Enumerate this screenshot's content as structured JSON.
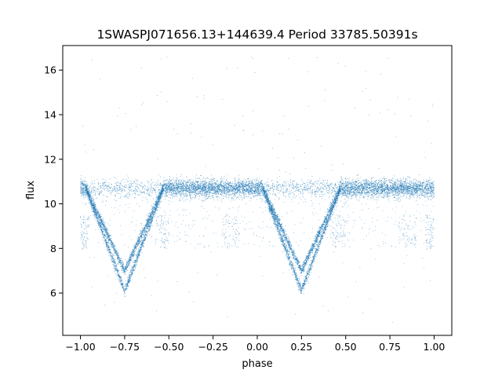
{
  "chart_data": {
    "type": "scatter",
    "title": "1SWASPJ071656.13+144639.4 Period 33785.50391s",
    "xlabel": "phase",
    "ylabel": "flux",
    "xlim": [
      -1.1,
      1.1
    ],
    "ylim": [
      4.1,
      17.1
    ],
    "x_ticks": [
      -1.0,
      -0.75,
      -0.5,
      -0.25,
      0.0,
      0.25,
      0.5,
      0.75,
      1.0
    ],
    "x_tick_labels": [
      "−1.00",
      "−0.75",
      "−0.50",
      "−0.25",
      "0.00",
      "0.25",
      "0.50",
      "0.75",
      "1.00"
    ],
    "y_ticks": [
      6,
      8,
      10,
      12,
      14,
      16
    ],
    "y_tick_labels": [
      "6",
      "8",
      "10",
      "12",
      "14",
      "16"
    ],
    "grid": false,
    "legend": "none",
    "marker_color": "#1f77b4",
    "series": [
      {
        "phase_range": [
          -1.0,
          1.0
        ],
        "baseline_flux": 10.7,
        "baseline_scatter": 0.25,
        "eclipses": [
          {
            "center_phase": -0.75,
            "ingress_start": -0.97,
            "egress_end": -0.53,
            "min_flux_upper_branch": 7.0,
            "min_flux_lower_branch": 6.1
          },
          {
            "center_phase": 0.25,
            "ingress_start": 0.03,
            "egress_end": 0.47,
            "min_flux_upper_branch": 7.0,
            "min_flux_lower_branch": 6.1
          }
        ],
        "scattered_low_clumps": [
          {
            "phase_range": [
              -1.0,
              -0.95
            ],
            "flux_range": [
              8.0,
              9.5
            ]
          },
          {
            "phase_range": [
              -0.58,
              -0.5
            ],
            "flux_range": [
              8.0,
              9.5
            ]
          },
          {
            "phase_range": [
              -0.2,
              -0.1
            ],
            "flux_range": [
              8.0,
              9.5
            ]
          },
          {
            "phase_range": [
              0.42,
              0.5
            ],
            "flux_range": [
              8.0,
              9.5
            ]
          },
          {
            "phase_range": [
              0.8,
              0.9
            ],
            "flux_range": [
              8.0,
              9.5
            ]
          },
          {
            "phase_range": [
              0.95,
              1.0
            ],
            "flux_range": [
              8.0,
              9.5
            ]
          }
        ],
        "outlier_flux_range": [
          4.6,
          16.6
        ]
      }
    ]
  }
}
